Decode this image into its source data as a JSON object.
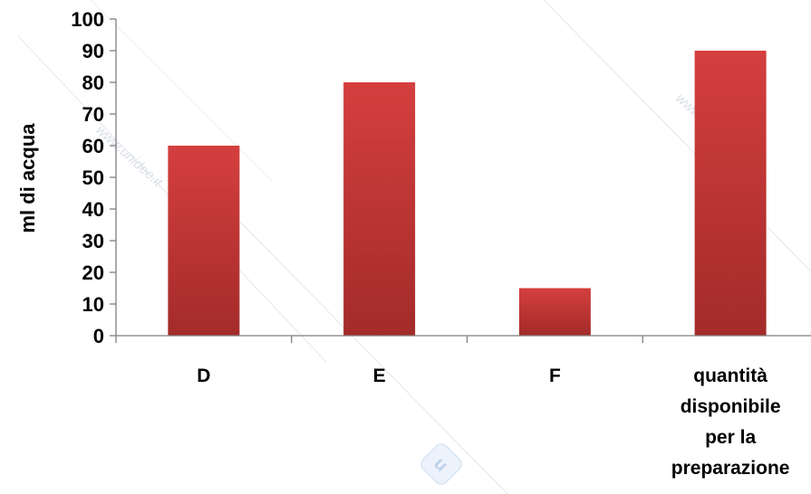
{
  "watermark": {
    "text_left": "www.unidee.it",
    "text_right": "www.unidee.it",
    "logo": "unidee-logo"
  },
  "chart_data": {
    "type": "bar",
    "categories": [
      "D",
      "E",
      "F",
      "quantità disponibile per la preparazione"
    ],
    "category_lines": [
      [
        "D"
      ],
      [
        "E"
      ],
      [
        "F"
      ],
      [
        "quantità",
        "disponibile",
        "per la",
        "preparazione"
      ]
    ],
    "values": [
      60,
      80,
      15,
      90
    ],
    "ylabel": "ml di acqua",
    "xlabel": "",
    "title": "",
    "ylim": [
      0,
      100
    ],
    "yticks": [
      "0",
      "10",
      "20",
      "30",
      "40",
      "50",
      "60",
      "70",
      "80",
      "90",
      "100"
    ],
    "grid": false,
    "legend": "none",
    "bar_color_top": "#d43f3e",
    "bar_color_bottom": "#a32b2a"
  }
}
